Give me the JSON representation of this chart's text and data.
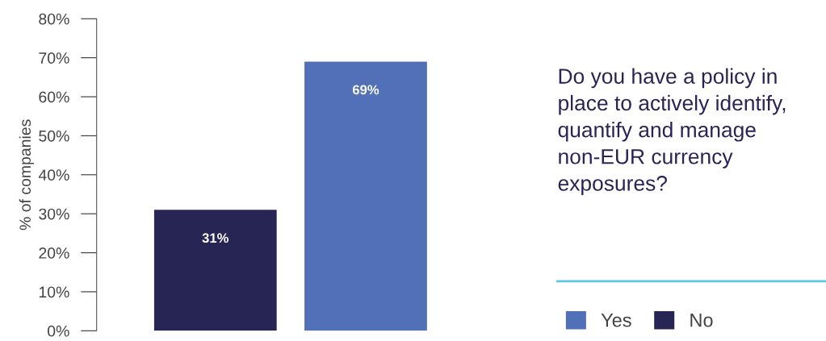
{
  "chart_data": {
    "type": "bar",
    "title": "Do you have a policy in place to actively identify, quantify and manage non-EUR currency exposures?",
    "ylabel": "% of companies",
    "categories": [
      null,
      null
    ],
    "stacked": true,
    "series": [
      {
        "name": "Yes",
        "color": "#5170b8",
        "values": [
          null,
          69
        ],
        "value_labels": [
          null,
          "69%"
        ]
      },
      {
        "name": "No",
        "color": "#272553",
        "values": [
          31,
          null
        ],
        "value_labels": [
          "31%",
          null
        ]
      }
    ],
    "ylim": [
      0,
      80
    ],
    "yticks": [
      {
        "value": 0,
        "label": "0%"
      },
      {
        "value": 10,
        "label": "10%"
      },
      {
        "value": 20,
        "label": "20%"
      },
      {
        "value": 30,
        "label": "30%"
      },
      {
        "value": 40,
        "label": "40%"
      },
      {
        "value": 50,
        "label": "50%"
      },
      {
        "value": 60,
        "label": "60%"
      },
      {
        "value": 70,
        "label": "70%"
      },
      {
        "value": 80,
        "label": "80%"
      }
    ],
    "grid": false,
    "legend": "bottom right"
  }
}
